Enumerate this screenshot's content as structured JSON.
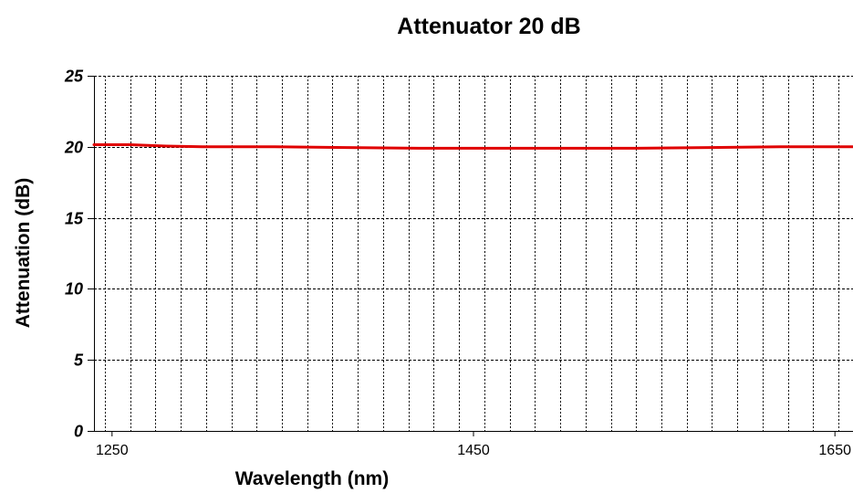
{
  "chart_data": {
    "type": "line",
    "title": "Attenuator 20 dB",
    "xlabel": "Wavelength (nm)",
    "ylabel": "Attenuation (dB)",
    "xlim": [
      1240,
      1660
    ],
    "ylim": [
      0,
      25
    ],
    "x_ticks": [
      1250,
      1450,
      1650
    ],
    "x_tick_labels": [
      "1250",
      "1450",
      "1650"
    ],
    "y_ticks": [
      0,
      5,
      10,
      15,
      20,
      25
    ],
    "y_tick_labels": [
      "0",
      "5",
      "10",
      "15",
      "20",
      "25"
    ],
    "x_grid_step": 14,
    "grid": true,
    "legend": "none",
    "line_color": "#e00000",
    "series": [
      {
        "x": [
          1240,
          1260,
          1280,
          1300,
          1340,
          1380,
          1420,
          1460,
          1500,
          1540,
          1580,
          1620,
          1660
        ],
        "values": [
          20.15,
          20.15,
          20.05,
          20.0,
          20.0,
          19.95,
          19.9,
          19.9,
          19.9,
          19.9,
          19.95,
          20.0,
          20.0
        ]
      }
    ]
  }
}
